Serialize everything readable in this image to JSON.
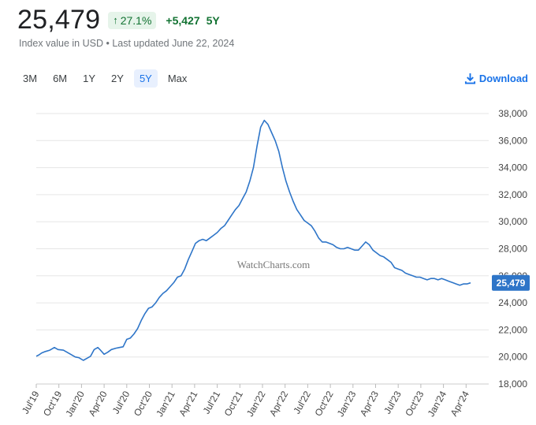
{
  "header": {
    "value": "25,479",
    "pct_change": "27.1%",
    "abs_change": "+5,427",
    "period": "5Y",
    "subtitle": "Index value in USD • Last updated June 22, 2024"
  },
  "ranges": [
    {
      "label": "3M",
      "active": false
    },
    {
      "label": "6M",
      "active": false
    },
    {
      "label": "1Y",
      "active": false
    },
    {
      "label": "2Y",
      "active": false
    },
    {
      "label": "5Y",
      "active": true
    },
    {
      "label": "Max",
      "active": false
    }
  ],
  "download_label": "Download",
  "colors": {
    "line": "#2e75c8",
    "badge_bg": "#e6f4ea",
    "positive": "#137333",
    "accent": "#1a73e8"
  },
  "chart_data": {
    "type": "line",
    "watermark": "WatchCharts.com",
    "ylim": [
      18000,
      38000
    ],
    "yticks": [
      18000,
      20000,
      22000,
      24000,
      26000,
      28000,
      30000,
      32000,
      34000,
      36000,
      38000
    ],
    "ytick_labels": [
      "18,000",
      "20,000",
      "22,000",
      "24,000",
      "26,000",
      "28,000",
      "30,000",
      "32,000",
      "34,000",
      "36,000",
      "38,000"
    ],
    "xlim": [
      2019.5,
      2024.5
    ],
    "xticks": [
      2019.5,
      2019.75,
      2020.0,
      2020.25,
      2020.5,
      2020.75,
      2021.0,
      2021.25,
      2021.5,
      2021.75,
      2022.0,
      2022.25,
      2022.5,
      2022.75,
      2023.0,
      2023.25,
      2023.5,
      2023.75,
      2024.0,
      2024.25
    ],
    "xtick_labels": [
      "Jul'19",
      "Oct'19",
      "Jan'20",
      "Apr'20",
      "Jul'20",
      "Oct'20",
      "Jan'21",
      "Apr'21",
      "Jul'21",
      "Oct'21",
      "Jan'22",
      "Apr'22",
      "Jul'22",
      "Oct'22",
      "Jan'23",
      "Apr'23",
      "Jul'23",
      "Oct'23",
      "Jan'24",
      "Apr'24"
    ],
    "current_label": "25,479",
    "current_value": 25479,
    "grid": "horizontal",
    "series": [
      {
        "points": [
          [
            2019.5,
            20050
          ],
          [
            2019.53,
            20150
          ],
          [
            2019.56,
            20300
          ],
          [
            2019.6,
            20400
          ],
          [
            2019.65,
            20500
          ],
          [
            2019.7,
            20700
          ],
          [
            2019.74,
            20550
          ],
          [
            2019.8,
            20500
          ],
          [
            2019.84,
            20350
          ],
          [
            2019.88,
            20200
          ],
          [
            2019.93,
            20000
          ],
          [
            2019.97,
            19950
          ],
          [
            2020.02,
            19750
          ],
          [
            2020.06,
            19900
          ],
          [
            2020.1,
            20050
          ],
          [
            2020.14,
            20550
          ],
          [
            2020.18,
            20700
          ],
          [
            2020.21,
            20500
          ],
          [
            2020.25,
            20200
          ],
          [
            2020.29,
            20350
          ],
          [
            2020.33,
            20550
          ],
          [
            2020.38,
            20650
          ],
          [
            2020.42,
            20700
          ],
          [
            2020.46,
            20750
          ],
          [
            2020.5,
            21300
          ],
          [
            2020.54,
            21400
          ],
          [
            2020.58,
            21700
          ],
          [
            2020.62,
            22100
          ],
          [
            2020.66,
            22700
          ],
          [
            2020.7,
            23200
          ],
          [
            2020.74,
            23600
          ],
          [
            2020.78,
            23700
          ],
          [
            2020.82,
            24000
          ],
          [
            2020.86,
            24400
          ],
          [
            2020.9,
            24700
          ],
          [
            2020.94,
            24900
          ],
          [
            2020.98,
            25200
          ],
          [
            2021.02,
            25500
          ],
          [
            2021.06,
            25900
          ],
          [
            2021.1,
            26000
          ],
          [
            2021.14,
            26500
          ],
          [
            2021.18,
            27200
          ],
          [
            2021.22,
            27800
          ],
          [
            2021.26,
            28400
          ],
          [
            2021.3,
            28600
          ],
          [
            2021.34,
            28700
          ],
          [
            2021.38,
            28600
          ],
          [
            2021.42,
            28800
          ],
          [
            2021.46,
            29000
          ],
          [
            2021.5,
            29200
          ],
          [
            2021.54,
            29500
          ],
          [
            2021.58,
            29700
          ],
          [
            2021.62,
            30100
          ],
          [
            2021.66,
            30500
          ],
          [
            2021.7,
            30900
          ],
          [
            2021.74,
            31200
          ],
          [
            2021.78,
            31700
          ],
          [
            2021.82,
            32200
          ],
          [
            2021.86,
            33000
          ],
          [
            2021.9,
            34000
          ],
          [
            2021.94,
            35600
          ],
          [
            2021.98,
            37000
          ],
          [
            2022.02,
            37500
          ],
          [
            2022.06,
            37200
          ],
          [
            2022.1,
            36600
          ],
          [
            2022.14,
            36000
          ],
          [
            2022.18,
            35200
          ],
          [
            2022.22,
            34000
          ],
          [
            2022.26,
            33000
          ],
          [
            2022.3,
            32200
          ],
          [
            2022.34,
            31500
          ],
          [
            2022.38,
            30900
          ],
          [
            2022.42,
            30500
          ],
          [
            2022.46,
            30100
          ],
          [
            2022.5,
            29900
          ],
          [
            2022.54,
            29700
          ],
          [
            2022.58,
            29300
          ],
          [
            2022.62,
            28800
          ],
          [
            2022.66,
            28500
          ],
          [
            2022.7,
            28500
          ],
          [
            2022.74,
            28400
          ],
          [
            2022.78,
            28300
          ],
          [
            2022.82,
            28100
          ],
          [
            2022.86,
            28000
          ],
          [
            2022.9,
            28000
          ],
          [
            2022.94,
            28100
          ],
          [
            2022.98,
            28000
          ],
          [
            2023.02,
            27900
          ],
          [
            2023.06,
            27900
          ],
          [
            2023.1,
            28200
          ],
          [
            2023.14,
            28500
          ],
          [
            2023.18,
            28300
          ],
          [
            2023.22,
            27900
          ],
          [
            2023.26,
            27700
          ],
          [
            2023.3,
            27500
          ],
          [
            2023.34,
            27400
          ],
          [
            2023.38,
            27200
          ],
          [
            2023.42,
            27000
          ],
          [
            2023.46,
            26600
          ],
          [
            2023.5,
            26500
          ],
          [
            2023.54,
            26400
          ],
          [
            2023.58,
            26200
          ],
          [
            2023.62,
            26100
          ],
          [
            2023.66,
            26000
          ],
          [
            2023.7,
            25900
          ],
          [
            2023.74,
            25900
          ],
          [
            2023.78,
            25800
          ],
          [
            2023.82,
            25700
          ],
          [
            2023.86,
            25800
          ],
          [
            2023.9,
            25800
          ],
          [
            2023.94,
            25700
          ],
          [
            2023.98,
            25800
          ],
          [
            2024.02,
            25700
          ],
          [
            2024.06,
            25600
          ],
          [
            2024.1,
            25500
          ],
          [
            2024.14,
            25400
          ],
          [
            2024.18,
            25300
          ],
          [
            2024.22,
            25400
          ],
          [
            2024.26,
            25400
          ],
          [
            2024.3,
            25479
          ]
        ]
      }
    ]
  }
}
